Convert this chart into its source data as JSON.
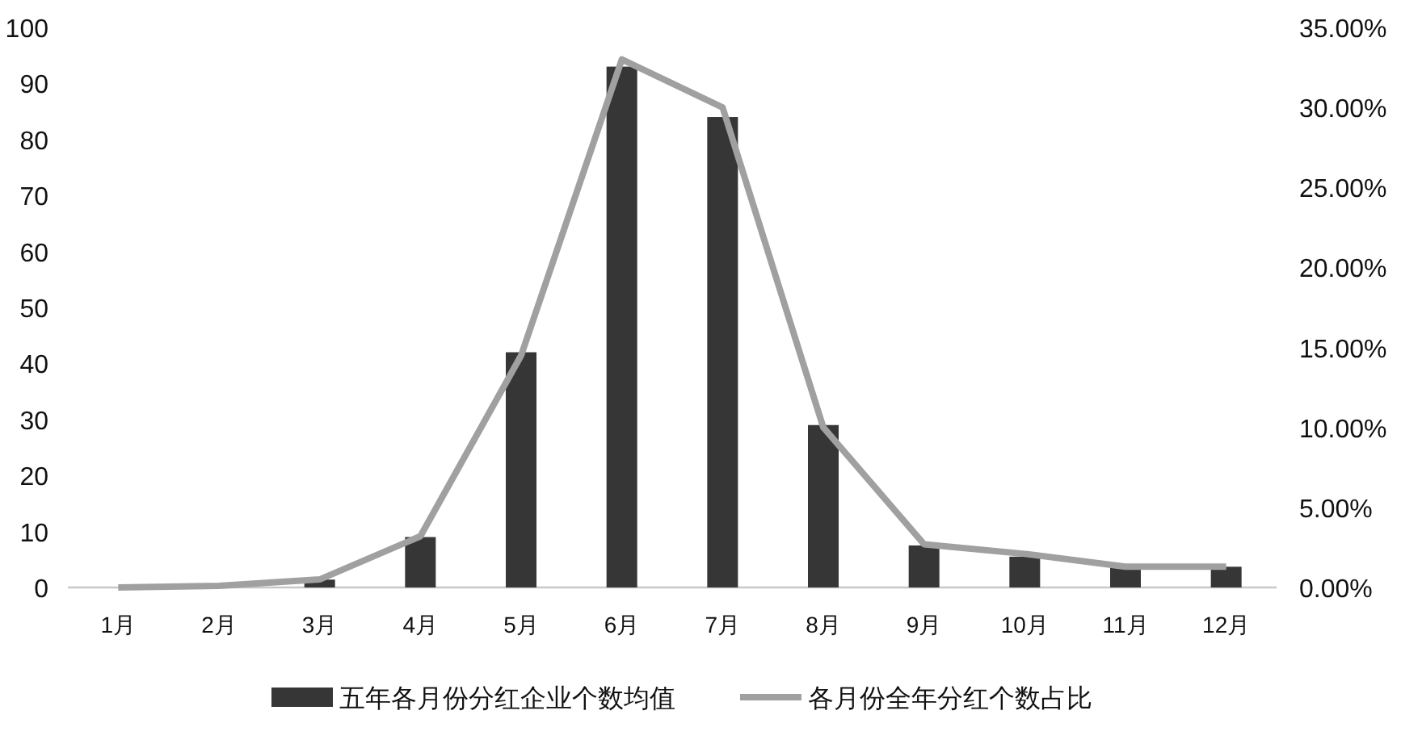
{
  "chart_data": {
    "type": "bar",
    "categories": [
      "1月",
      "2月",
      "3月",
      "4月",
      "5月",
      "6月",
      "7月",
      "8月",
      "9月",
      "10月",
      "11月",
      "12月"
    ],
    "series": [
      {
        "name": "五年各月份分红企业个数均值",
        "color": "#363636",
        "values": [
          0,
          0,
          1.4,
          9,
          42,
          93,
          84,
          29,
          7.5,
          5.5,
          3.7,
          3.7
        ]
      },
      {
        "name": "各月份全年分红个数占比",
        "type": "line",
        "axis": "y2",
        "color": "#a0a0a0",
        "values": [
          0,
          0.1,
          0.5,
          3.2,
          14.5,
          33,
          30,
          10,
          2.7,
          2.1,
          1.3,
          1.3
        ]
      }
    ],
    "ylim": [
      0,
      100
    ],
    "yticks": [
      0,
      10,
      20,
      30,
      40,
      50,
      60,
      70,
      80,
      90,
      100
    ],
    "y2lim": [
      0,
      35
    ],
    "y2ticks": [
      {
        "value": 0,
        "label": "0.00%"
      },
      {
        "value": 5,
        "label": "5.00%"
      },
      {
        "value": 10,
        "label": "10.00%"
      },
      {
        "value": 15,
        "label": "15.00%"
      },
      {
        "value": 20,
        "label": "20.00%"
      },
      {
        "value": 25,
        "label": "25.00%"
      },
      {
        "value": 30,
        "label": "30.00%"
      },
      {
        "value": 35,
        "label": "35.00%"
      }
    ],
    "grid": false,
    "legend": "bottom",
    "marker": "none"
  }
}
